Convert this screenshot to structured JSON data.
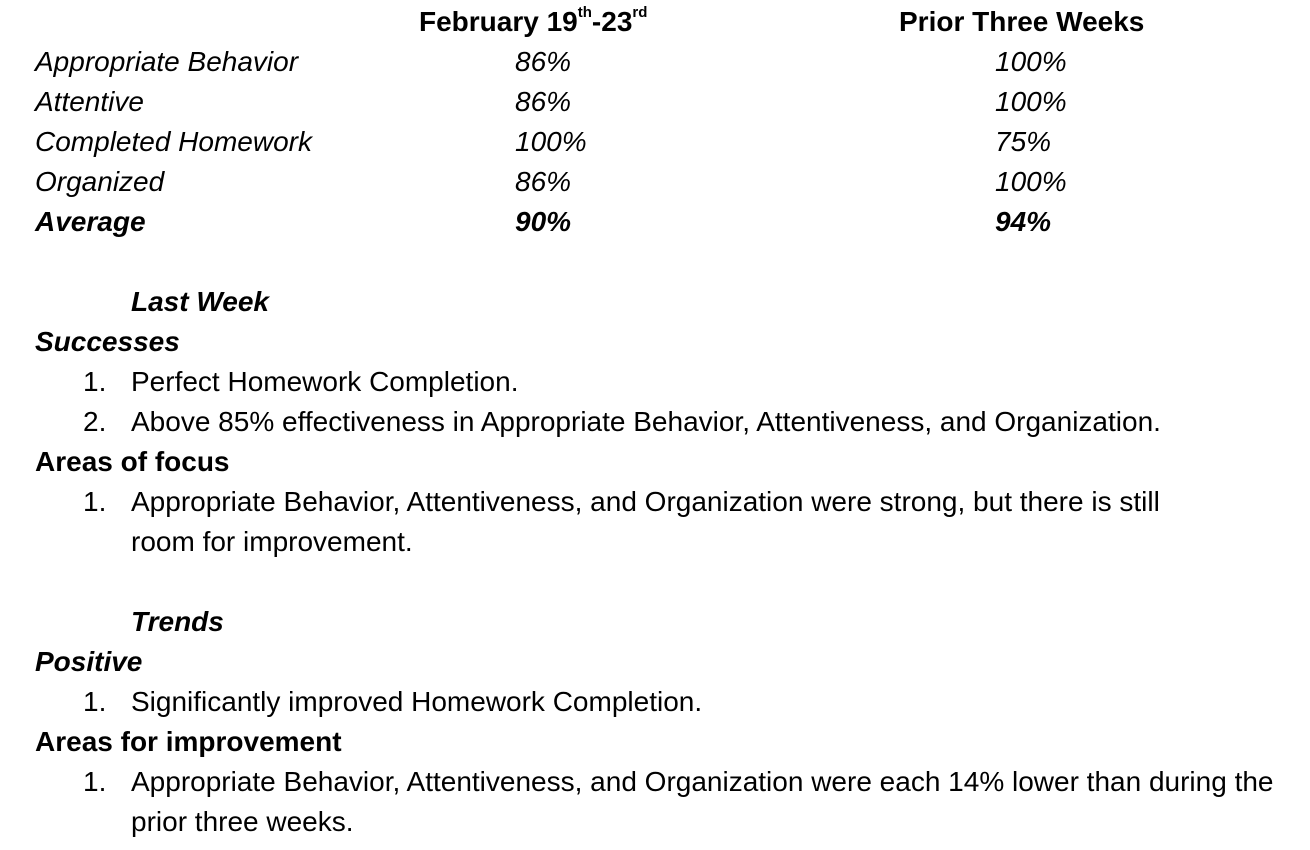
{
  "table": {
    "header": {
      "col1_prefix": "February 19",
      "col1_sup1": "th",
      "col1_mid": "-23",
      "col1_sup2": "rd",
      "col2": "Prior Three Weeks"
    },
    "rows": [
      {
        "label": "Appropriate Behavior",
        "current": "86%",
        "prior": "100%"
      },
      {
        "label": "Attentive",
        "current": "86%",
        "prior": "100%"
      },
      {
        "label": "Completed Homework",
        "current": "100%",
        "prior": "75%"
      },
      {
        "label": "Organized",
        "current": "86%",
        "prior": "100%"
      },
      {
        "label": "Average",
        "current": "90%",
        "prior": "94%"
      }
    ]
  },
  "last_week": {
    "title": "Last Week",
    "successes": {
      "heading": "Successes",
      "items": [
        {
          "num": "1.",
          "text": "Perfect Homework Completion."
        },
        {
          "num": "2.",
          "text": "Above 85% effectiveness in Appropriate Behavior, Attentiveness, and Organization."
        }
      ]
    },
    "focus": {
      "heading": "Areas of focus",
      "items": [
        {
          "num": "1.",
          "text": "Appropriate Behavior, Attentiveness, and Organization were strong, but there is still room for improvement."
        }
      ]
    }
  },
  "trends": {
    "title": "Trends",
    "positive": {
      "heading": "Positive",
      "items": [
        {
          "num": "1.",
          "text": "Significantly improved Homework Completion."
        }
      ]
    },
    "improvement": {
      "heading": "Areas for improvement",
      "items": [
        {
          "num": "1.",
          "text": "Appropriate Behavior, Attentiveness, and Organization were each 14% lower than during the prior three weeks."
        }
      ]
    }
  }
}
